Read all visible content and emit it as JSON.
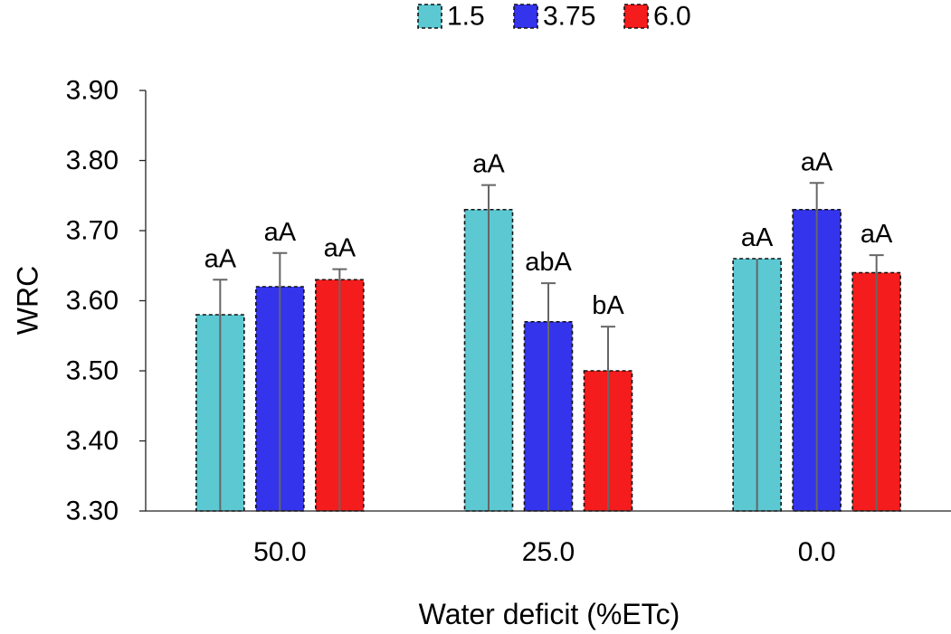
{
  "chart_data": {
    "type": "bar",
    "title": "",
    "xlabel": "Water deficit (%ETc)",
    "ylabel": "WRC",
    "ylim": [
      3.3,
      3.9
    ],
    "yticks": [
      "3.30",
      "3.40",
      "3.50",
      "3.60",
      "3.70",
      "3.80",
      "3.90"
    ],
    "categories": [
      "50.0",
      "25.0",
      "0.0"
    ],
    "legend_position": "top",
    "grid": false,
    "series": [
      {
        "name": "1.5",
        "color": "#5bc8d2",
        "values": [
          3.58,
          3.73,
          3.66
        ],
        "error": [
          0.05,
          0.035,
          0.0
        ],
        "labels": [
          "aA",
          "aA",
          "aA"
        ]
      },
      {
        "name": "3.75",
        "color": "#3434ec",
        "values": [
          3.62,
          3.57,
          3.73
        ],
        "error": [
          0.048,
          0.055,
          0.038
        ],
        "labels": [
          "aA",
          "abA",
          "aA"
        ]
      },
      {
        "name": "6.0",
        "color": "#f41c1c",
        "values": [
          3.63,
          3.5,
          3.64
        ],
        "error": [
          0.015,
          0.063,
          0.025
        ],
        "labels": [
          "aA",
          "bA",
          "aA"
        ]
      }
    ]
  }
}
